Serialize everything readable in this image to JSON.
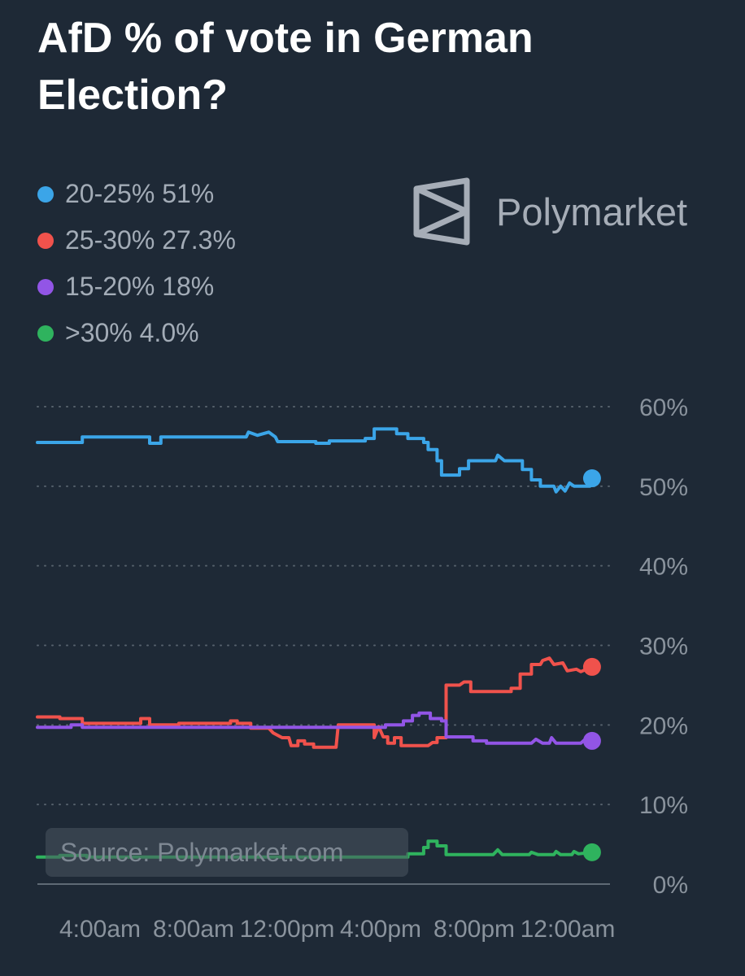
{
  "title": "AfD % of vote in German Election?",
  "brand": {
    "name": "Polymarket",
    "icon": "polymarket-logo-icon"
  },
  "source": "Source: Polymarket.com",
  "chart_data": {
    "type": "line",
    "title": "AfD % of vote in German Election?",
    "x_tick_labels": [
      "4:00am",
      "8:00am",
      "12:00pm",
      "4:00pm",
      "8:00pm",
      "12:00am"
    ],
    "y_tick_labels": [
      "0%",
      "10%",
      "20%",
      "30%",
      "40%",
      "50%",
      "60%"
    ],
    "ylim": [
      0,
      60
    ],
    "grid": "dotted horizontal",
    "legend_position": "top-left",
    "series": [
      {
        "name": "20-25%",
        "latest": "51%",
        "color": "#3ba5e8",
        "points": [
          [
            0,
            55.5
          ],
          [
            2,
            55.5
          ],
          [
            2,
            56.2
          ],
          [
            5,
            56.2
          ],
          [
            5,
            55.4
          ],
          [
            5.5,
            55.4
          ],
          [
            5.5,
            56.2
          ],
          [
            9.3,
            56.2
          ],
          [
            9.4,
            56.8
          ],
          [
            9.8,
            56.4
          ],
          [
            10.3,
            56.8
          ],
          [
            10.6,
            56.2
          ],
          [
            10.7,
            55.6
          ],
          [
            12.4,
            55.6
          ],
          [
            12.4,
            55.4
          ],
          [
            13,
            55.4
          ],
          [
            13,
            55.7
          ],
          [
            14.6,
            55.7
          ],
          [
            14.6,
            56
          ],
          [
            15,
            56
          ],
          [
            15,
            57.2
          ],
          [
            16,
            57.2
          ],
          [
            16,
            56.6
          ],
          [
            16.5,
            56.6
          ],
          [
            16.5,
            56
          ],
          [
            17.2,
            56
          ],
          [
            17.2,
            55.5
          ],
          [
            17.4,
            55.5
          ],
          [
            17.4,
            54.6
          ],
          [
            17.8,
            54.6
          ],
          [
            17.8,
            53.2
          ],
          [
            18,
            53.2
          ],
          [
            18,
            51.4
          ],
          [
            18.8,
            51.4
          ],
          [
            18.8,
            52.2
          ],
          [
            19.2,
            52.2
          ],
          [
            19.2,
            53.2
          ],
          [
            20.4,
            53.2
          ],
          [
            20.5,
            53.9
          ],
          [
            20.8,
            53.2
          ],
          [
            21.6,
            53.2
          ],
          [
            21.6,
            52.1
          ],
          [
            22,
            52.1
          ],
          [
            22,
            50.8
          ],
          [
            22.4,
            50.8
          ],
          [
            22.4,
            50
          ],
          [
            23,
            50
          ],
          [
            23.1,
            49.3
          ],
          [
            23.3,
            50
          ],
          [
            23.5,
            49.4
          ],
          [
            23.7,
            50.4
          ],
          [
            23.9,
            50
          ],
          [
            24.6,
            50
          ],
          [
            24.6,
            50.6
          ],
          [
            24.7,
            51
          ]
        ]
      },
      {
        "name": "25-30%",
        "latest": "27.3%",
        "color": "#f0524c",
        "points": [
          [
            0,
            21
          ],
          [
            1,
            21
          ],
          [
            1,
            20.8
          ],
          [
            2,
            20.8
          ],
          [
            2,
            20.2
          ],
          [
            4.6,
            20.2
          ],
          [
            4.6,
            20.8
          ],
          [
            5,
            20.8
          ],
          [
            5,
            20
          ],
          [
            6.3,
            20
          ],
          [
            6.3,
            20.2
          ],
          [
            8.6,
            20.2
          ],
          [
            8.6,
            20.5
          ],
          [
            8.9,
            20.5
          ],
          [
            8.9,
            20.2
          ],
          [
            9.5,
            20.2
          ],
          [
            9.5,
            19.6
          ],
          [
            10.3,
            19.6
          ],
          [
            10.5,
            19
          ],
          [
            10.9,
            18.4
          ],
          [
            11.2,
            18.4
          ],
          [
            11.3,
            17.4
          ],
          [
            11.6,
            17.4
          ],
          [
            11.6,
            18
          ],
          [
            11.9,
            18
          ],
          [
            11.9,
            17.6
          ],
          [
            12.3,
            17.6
          ],
          [
            12.3,
            17.2
          ],
          [
            13.3,
            17.2
          ],
          [
            13.4,
            20
          ],
          [
            15,
            20
          ],
          [
            15,
            18.4
          ],
          [
            15.2,
            19.8
          ],
          [
            15.4,
            18.5
          ],
          [
            15.6,
            18.5
          ],
          [
            15.6,
            17.7
          ],
          [
            15.9,
            17.7
          ],
          [
            15.9,
            18.4
          ],
          [
            16.2,
            18.4
          ],
          [
            16.2,
            17.4
          ],
          [
            17.4,
            17.4
          ],
          [
            17.6,
            17.8
          ],
          [
            17.8,
            17.8
          ],
          [
            17.8,
            18.4
          ],
          [
            18.2,
            18.4
          ],
          [
            18.2,
            25
          ],
          [
            18.8,
            25
          ],
          [
            19,
            25.4
          ],
          [
            19.3,
            25.4
          ],
          [
            19.3,
            24.2
          ],
          [
            21.1,
            24.2
          ],
          [
            21.1,
            24.6
          ],
          [
            21.5,
            24.6
          ],
          [
            21.5,
            26.4
          ],
          [
            22,
            26.4
          ],
          [
            22,
            27.6
          ],
          [
            22.4,
            27.6
          ],
          [
            22.5,
            28.1
          ],
          [
            22.8,
            28.4
          ],
          [
            23,
            27.6
          ],
          [
            23.4,
            27.8
          ],
          [
            23.6,
            26.8
          ],
          [
            24,
            27
          ],
          [
            24.2,
            26.7
          ],
          [
            24.7,
            27.3
          ]
        ]
      },
      {
        "name": "15-20%",
        "latest": "18%",
        "color": "#9255e6",
        "points": [
          [
            0,
            19.7
          ],
          [
            1.5,
            19.7
          ],
          [
            1.5,
            20
          ],
          [
            2,
            20
          ],
          [
            2,
            19.7
          ],
          [
            15.5,
            19.7
          ],
          [
            15.5,
            20
          ],
          [
            16.3,
            20
          ],
          [
            16.3,
            20.5
          ],
          [
            16.7,
            20.5
          ],
          [
            16.7,
            21.2
          ],
          [
            17,
            21.2
          ],
          [
            17,
            21.5
          ],
          [
            17.5,
            21.5
          ],
          [
            17.5,
            20.8
          ],
          [
            18,
            20.8
          ],
          [
            18,
            20.5
          ],
          [
            18.2,
            20.5
          ],
          [
            18.2,
            18.5
          ],
          [
            19.4,
            18.5
          ],
          [
            19.4,
            18
          ],
          [
            20,
            18
          ],
          [
            20,
            17.7
          ],
          [
            22,
            17.7
          ],
          [
            22.2,
            18.2
          ],
          [
            22.5,
            17.7
          ],
          [
            22.8,
            17.7
          ],
          [
            22.9,
            18.4
          ],
          [
            23.1,
            17.7
          ],
          [
            24.2,
            17.7
          ],
          [
            24.4,
            18.2
          ],
          [
            24.7,
            18
          ]
        ]
      },
      {
        "name": ">30%",
        "latest": "4.0%",
        "color": "#2fb35e",
        "points": [
          [
            0,
            3.4
          ],
          [
            1,
            3.4
          ],
          [
            1,
            3.6
          ],
          [
            2.2,
            3.6
          ],
          [
            2.2,
            3.4
          ],
          [
            16.5,
            3.4
          ],
          [
            16.5,
            3.8
          ],
          [
            17.2,
            3.8
          ],
          [
            17.2,
            4.6
          ],
          [
            17.4,
            4.6
          ],
          [
            17.4,
            5.4
          ],
          [
            17.8,
            5.4
          ],
          [
            17.8,
            4.8
          ],
          [
            18.2,
            4.8
          ],
          [
            18.2,
            3.7
          ],
          [
            20.3,
            3.7
          ],
          [
            20.5,
            4.3
          ],
          [
            20.7,
            3.7
          ],
          [
            21.9,
            3.7
          ],
          [
            22,
            4
          ],
          [
            22.3,
            3.7
          ],
          [
            23,
            3.7
          ],
          [
            23.1,
            4.1
          ],
          [
            23.3,
            3.7
          ],
          [
            23.8,
            3.7
          ],
          [
            23.9,
            4.1
          ],
          [
            24.1,
            3.8
          ],
          [
            24.7,
            4
          ]
        ]
      }
    ]
  }
}
